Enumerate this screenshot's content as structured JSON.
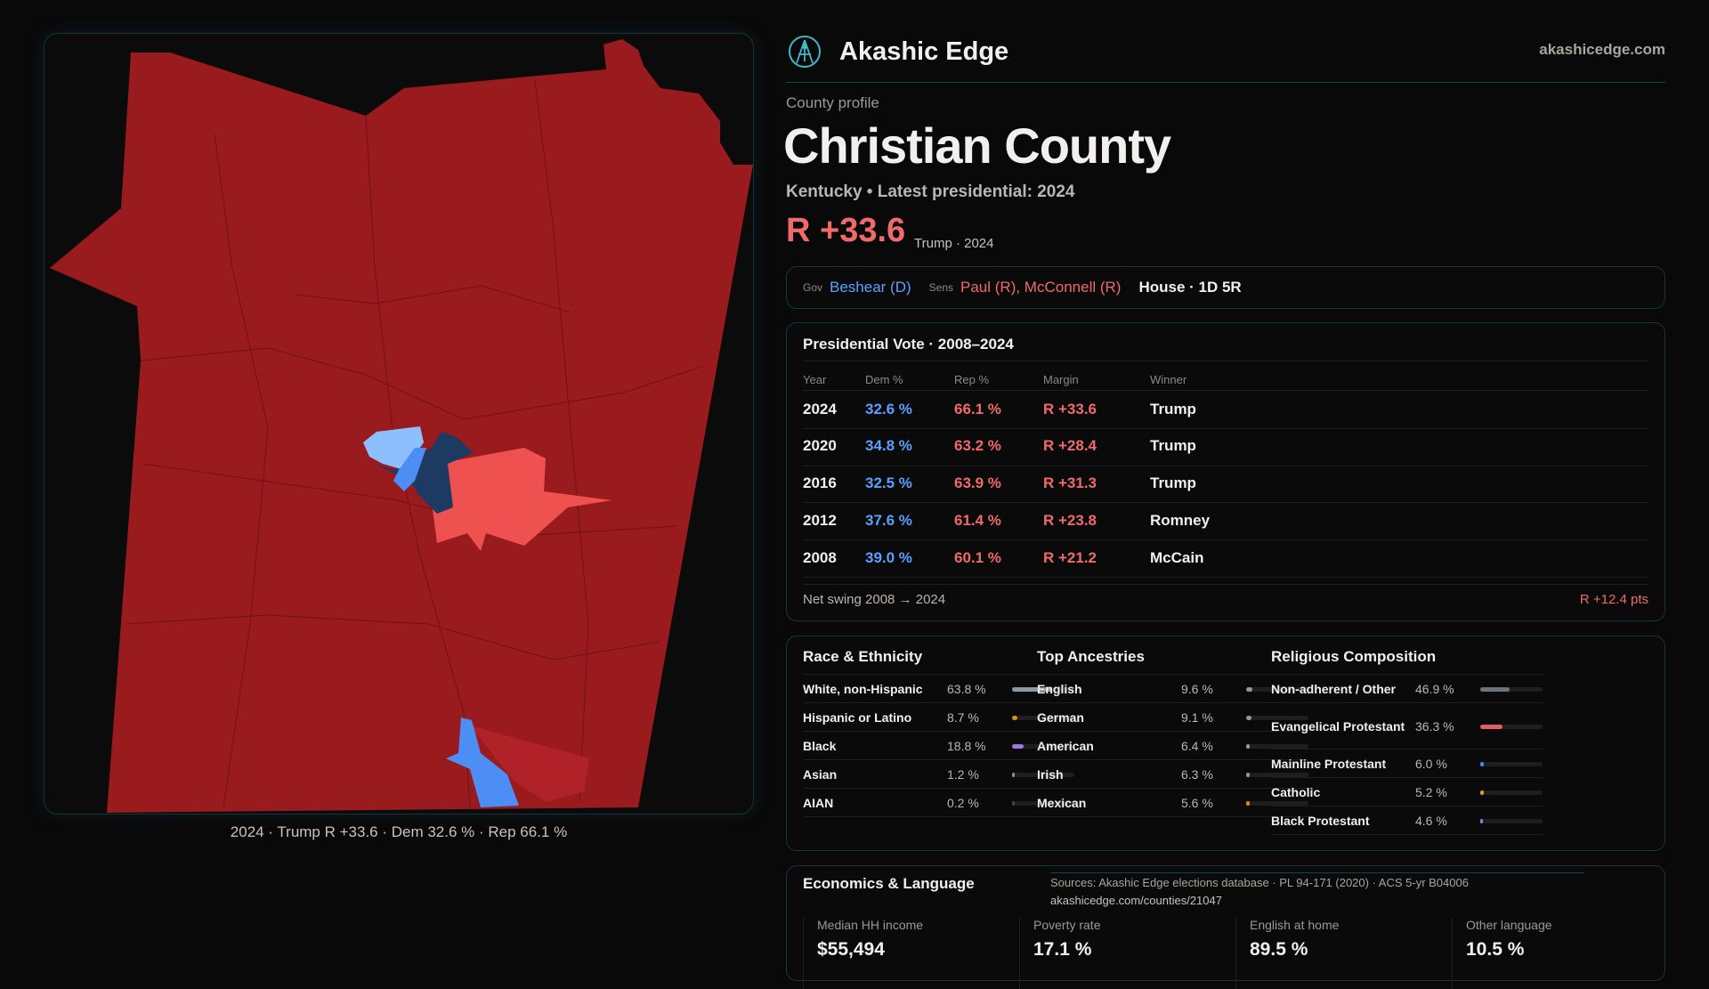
{
  "map": {
    "caption": "2024 · Trump R +33.6 · Dem 32.6 % · Rep 66.1 %",
    "colors": {
      "strong_r": "#9a1b1e",
      "lean_r": "#b02228",
      "tilt_r": "#ef5150",
      "light_d": "#8dbfff",
      "mid_d": "#4d8ef5",
      "strong_d": "#1d3a63"
    }
  },
  "header": {
    "brand": "Akashic Edge",
    "site": "akashicedge.com",
    "logo_icon": "akashic-logo"
  },
  "profile": {
    "eyebrow": "County profile",
    "title": "Christian County",
    "subtitle": "Kentucky • Latest presidential: 2024",
    "margin": "R +33.6",
    "margin_sub": "Trump · 2024"
  },
  "officials": {
    "gov_label": "Gov",
    "gov": "Beshear (D)",
    "sens_label": "Sens",
    "sens": "Paul (R), McConnell (R)",
    "house": "House · 1D 5R"
  },
  "presidential": {
    "title": "Presidential Vote · 2008–2024",
    "headers": [
      "Year",
      "Dem %",
      "Rep %",
      "Margin",
      "Winner"
    ],
    "rows": [
      [
        "2024",
        "32.6 %",
        "66.1 %",
        "R +33.6",
        "Trump"
      ],
      [
        "2020",
        "34.8 %",
        "63.2 %",
        "R +28.4",
        "Trump"
      ],
      [
        "2016",
        "32.5 %",
        "63.9 %",
        "R +31.3",
        "Trump"
      ],
      [
        "2012",
        "37.6 %",
        "61.4 %",
        "R +23.8",
        "Romney"
      ],
      [
        "2008",
        "39.0 %",
        "60.1 %",
        "R +21.2",
        "McCain"
      ]
    ],
    "swing_label": "Net swing 2008 → 2024",
    "swing_value": "R +12.4 pts"
  },
  "demographics": [
    {
      "title": "Race & Ethnicity",
      "rows": [
        {
          "name": "White, non-Hispanic",
          "value": "63.8 %",
          "pct": 63.8,
          "color": "#8c97a8"
        },
        {
          "name": "Hispanic or Latino",
          "value": "8.7 %",
          "pct": 8.7,
          "color": "#d4900e"
        },
        {
          "name": "Black",
          "value": "18.8 %",
          "pct": 18.8,
          "color": "#9a78e0"
        },
        {
          "name": "Asian",
          "value": "1.2 %",
          "pct": 1.2,
          "color": "#8a8a8a"
        },
        {
          "name": "AIAN",
          "value": "0.2 %",
          "pct": 0.2,
          "color": "#444"
        }
      ]
    },
    {
      "title": "Top Ancestries",
      "rows": [
        {
          "name": "English",
          "value": "9.6 %",
          "pct": 9.6,
          "color": "#8c97a8"
        },
        {
          "name": "German",
          "value": "9.1 %",
          "pct": 9.1,
          "color": "#8c97a8"
        },
        {
          "name": "American",
          "value": "6.4 %",
          "pct": 6.4,
          "color": "#8c97a8"
        },
        {
          "name": "Irish",
          "value": "6.3 %",
          "pct": 6.3,
          "color": "#8c97a8"
        },
        {
          "name": "Mexican",
          "value": "5.6 %",
          "pct": 5.6,
          "color": "#d4900e"
        }
      ]
    },
    {
      "title": "Religious Composition",
      "rows": [
        {
          "name": "Non-adherent / Other",
          "value": "46.9 %",
          "pct": 46.9,
          "color": "#6d7280"
        },
        {
          "name": "Evangelical Protestant",
          "value": "36.3 %",
          "pct": 36.3,
          "color": "#e06060"
        },
        {
          "name": "Mainline Protestant",
          "value": "6.0 %",
          "pct": 6.0,
          "color": "#4a86e8"
        },
        {
          "name": "Catholic",
          "value": "5.2 %",
          "pct": 5.2,
          "color": "#e0a010"
        },
        {
          "name": "Black Protestant",
          "value": "4.6 %",
          "pct": 4.6,
          "color": "#9a78e0"
        }
      ]
    }
  ],
  "economics": {
    "title": "Economics & Language",
    "metrics": [
      {
        "label": "Median HH income",
        "value": "$55,494"
      },
      {
        "label": "Poverty rate",
        "value": "17.1 %"
      },
      {
        "label": "English at home",
        "value": "89.5 %"
      },
      {
        "label": "Other language",
        "value": "10.5 %"
      }
    ]
  },
  "footer": {
    "sources": "Sources: Akashic Edge elections database · PL 94-171 (2020) · ACS 5-yr B04006",
    "permalink": "akashicedge.com/counties/21047"
  }
}
